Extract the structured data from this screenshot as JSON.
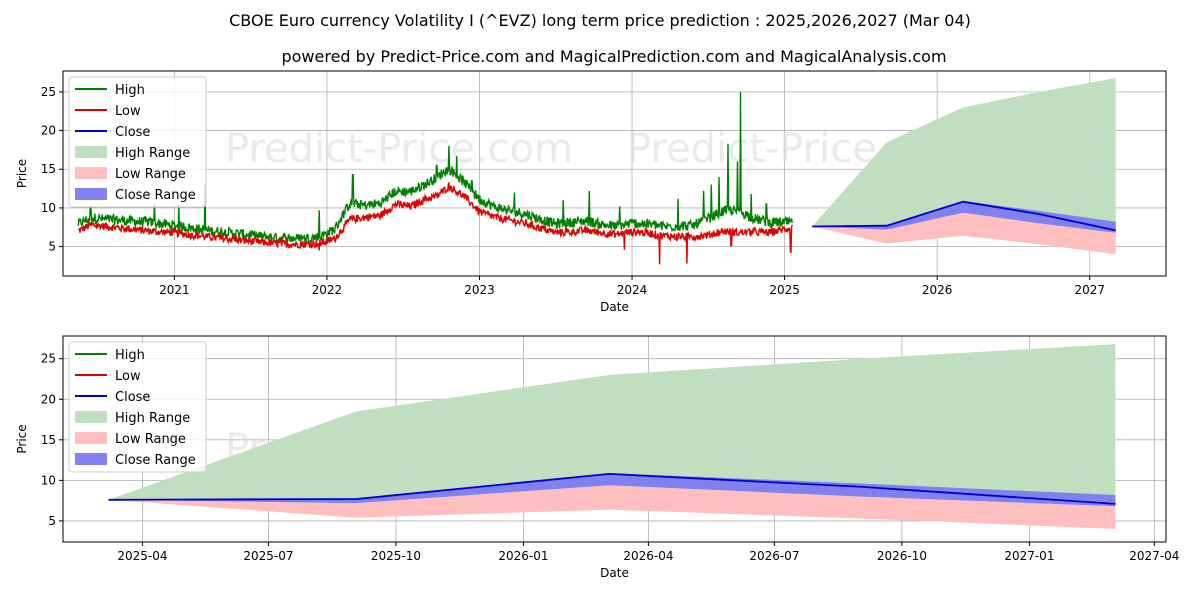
{
  "title": "CBOE Euro currency Volatility I (^EVZ) long term price prediction : 2025,2026,2027 (Mar 04)",
  "subtitle": "powered by Predict-Price.com and MagicalPrediction.com and MagicalAnalysis.com",
  "watermark": "Predict-Price.com",
  "colors": {
    "high": "#008000",
    "low": "#dd0000",
    "close": "#0000cc",
    "high_range": "#bfdfbf",
    "low_range": "#ffbfbf",
    "close_range": "#8080f0"
  },
  "chart_data": [
    {
      "type": "line",
      "xlabel": "Date",
      "ylabel": "Price",
      "x_unit": "year",
      "xlim": [
        2020.27,
        2027.5
      ],
      "ylim": [
        1.2,
        27.7
      ],
      "xticks": [
        2021,
        2022,
        2023,
        2024,
        2025,
        2026,
        2027
      ],
      "xtick_labels": [
        "2021",
        "2022",
        "2023",
        "2024",
        "2025",
        "2026",
        "2027"
      ],
      "yticks": [
        5,
        10,
        15,
        20,
        25
      ],
      "ytick_labels": [
        "5",
        "10",
        "15",
        "20",
        "25"
      ],
      "grid": true,
      "legend_position": "top-left",
      "legend": [
        "High",
        "Low",
        "Close",
        "High Range",
        "Low Range",
        "Close Range"
      ],
      "history_anchors": {
        "x": [
          2020.37,
          2020.45,
          2020.55,
          2020.7,
          2020.85,
          2021.0,
          2021.2,
          2021.4,
          2021.6,
          2021.8,
          2021.95,
          2022.05,
          2022.15,
          2022.25,
          2022.35,
          2022.45,
          2022.55,
          2022.65,
          2022.72,
          2022.8,
          2022.9,
          2023.0,
          2023.1,
          2023.2,
          2023.3,
          2023.4,
          2023.5,
          2023.6,
          2023.7,
          2023.8,
          2023.9,
          2024.0,
          2024.1,
          2024.2,
          2024.3,
          2024.4,
          2024.5,
          2024.6,
          2024.7,
          2024.8,
          2024.9,
          2025.05
        ],
        "low": [
          7.0,
          7.8,
          7.6,
          7.3,
          7.0,
          6.8,
          6.3,
          5.9,
          5.5,
          5.3,
          5.4,
          6.0,
          8.5,
          8.8,
          9.0,
          10.5,
          10.2,
          11.2,
          11.5,
          12.8,
          11.5,
          9.5,
          8.8,
          8.4,
          8.0,
          7.4,
          6.8,
          6.9,
          7.1,
          6.8,
          6.6,
          6.9,
          6.8,
          6.4,
          6.3,
          6.3,
          6.5,
          7.0,
          6.8,
          6.9,
          6.8,
          7.5
        ],
        "high": [
          7.8,
          8.6,
          8.4,
          8.2,
          8.0,
          7.6,
          7.0,
          6.6,
          6.1,
          5.9,
          6.1,
          7.1,
          10.5,
          10.2,
          10.5,
          12.0,
          12.0,
          13.0,
          13.8,
          15.0,
          13.2,
          11.0,
          10.0,
          9.5,
          9.1,
          8.4,
          7.8,
          8.0,
          8.2,
          7.7,
          7.5,
          7.9,
          7.8,
          7.5,
          7.5,
          7.6,
          8.5,
          9.5,
          9.5,
          8.5,
          8.0,
          8.0
        ]
      },
      "high_spikes": [
        [
          2020.45,
          10.2
        ],
        [
          2020.87,
          10.5
        ],
        [
          2021.03,
          10.4
        ],
        [
          2021.2,
          13.2
        ],
        [
          2021.95,
          9.7
        ],
        [
          2022.17,
          14.3
        ],
        [
          2022.72,
          15.5
        ],
        [
          2022.8,
          18.0
        ],
        [
          2022.85,
          16.7
        ],
        [
          2022.95,
          13.5
        ],
        [
          2023.23,
          12.0
        ],
        [
          2023.55,
          11.0
        ],
        [
          2023.72,
          12.2
        ],
        [
          2023.92,
          10.2
        ],
        [
          2024.3,
          11.2
        ],
        [
          2024.47,
          12.2
        ],
        [
          2024.52,
          13.0
        ],
        [
          2024.57,
          14.0
        ],
        [
          2024.63,
          18.3
        ],
        [
          2024.69,
          16.0
        ],
        [
          2024.71,
          25.0
        ],
        [
          2024.78,
          11.8
        ],
        [
          2024.88,
          10.5
        ]
      ],
      "low_dips": [
        [
          2021.95,
          4.5
        ],
        [
          2023.95,
          4.6
        ],
        [
          2024.18,
          2.7
        ],
        [
          2024.36,
          2.8
        ],
        [
          2024.65,
          5.1
        ],
        [
          2025.04,
          4.3
        ]
      ],
      "forecast": {
        "x": [
          2025.18,
          2025.67,
          2026.17,
          2026.67,
          2027.17
        ],
        "x_labels": [
          "2025-03-04",
          "2025-09-01",
          "2026-03-03",
          "2026-08-31",
          "2027-03-03"
        ],
        "high_range_upper": [
          7.6,
          18.5,
          23.0,
          25.0,
          26.8
        ],
        "low_range_lower": [
          7.6,
          5.4,
          6.4,
          5.3,
          4.0
        ],
        "close_upper": [
          7.6,
          7.8,
          10.9,
          9.6,
          8.2
        ],
        "close_lower": [
          7.6,
          7.2,
          9.4,
          8.0,
          6.8
        ],
        "close": [
          7.6,
          7.7,
          10.8,
          9.2,
          7.1
        ]
      }
    },
    {
      "type": "line",
      "xlabel": "Date",
      "ylabel": "Price",
      "x_unit": "year",
      "xlim": [
        2025.09,
        2027.27
      ],
      "ylim": [
        2.4,
        27.8
      ],
      "xticks": [
        2025.247,
        2025.496,
        2025.748,
        2026.0,
        2026.247,
        2026.496,
        2026.748,
        2027.0,
        2027.247
      ],
      "xtick_labels": [
        "2025-04",
        "2025-07",
        "2025-10",
        "2026-01",
        "2026-04",
        "2026-07",
        "2026-10",
        "2027-01",
        "2027-04"
      ],
      "yticks": [
        5,
        10,
        15,
        20,
        25
      ],
      "ytick_labels": [
        "5",
        "10",
        "15",
        "20",
        "25"
      ],
      "grid": true,
      "legend_position": "top-left",
      "legend": [
        "High",
        "Low",
        "Close",
        "High Range",
        "Low Range",
        "Close Range"
      ],
      "forecast_ref": "chart_data.0.forecast"
    }
  ]
}
